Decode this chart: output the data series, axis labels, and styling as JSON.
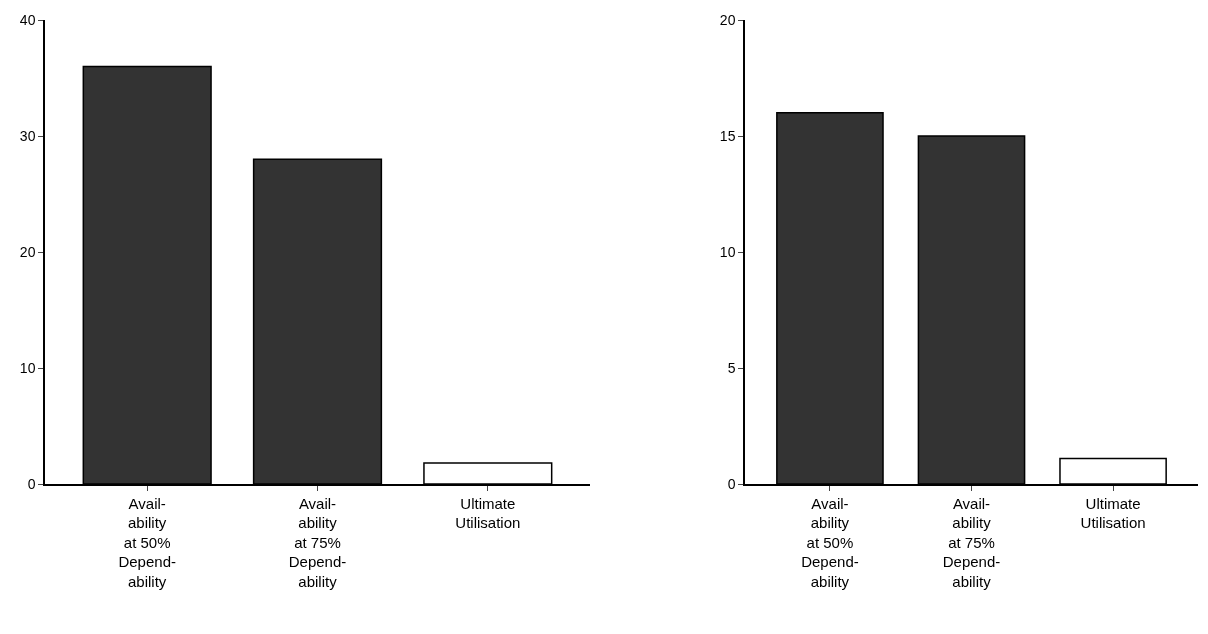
{
  "chart_data": [
    {
      "type": "bar",
      "categories": [
        "Avail-\nability\nat 50%\nDepend-\nability",
        "Avail-\nability\nat 75%\nDepend-\nability",
        "Ultimate\nUtilisation"
      ],
      "values": [
        36,
        28,
        1.8
      ],
      "colors": [
        "#333333",
        "#333333",
        "#ffffff"
      ],
      "ylim": [
        0,
        40
      ],
      "yticks": [
        0,
        10,
        20,
        30,
        40
      ],
      "grid": false
    },
    {
      "type": "bar",
      "categories": [
        "Avail-\nability\nat 50%\nDepend-\nability",
        "Avail-\nability\nat 75%\nDepend-\nability",
        "Ultimate\nUtilisation"
      ],
      "values": [
        16,
        15,
        1.1
      ],
      "colors": [
        "#333333",
        "#333333",
        "#ffffff"
      ],
      "ylim": [
        0,
        20
      ],
      "yticks": [
        0,
        5,
        10,
        15,
        20
      ],
      "grid": false
    }
  ]
}
